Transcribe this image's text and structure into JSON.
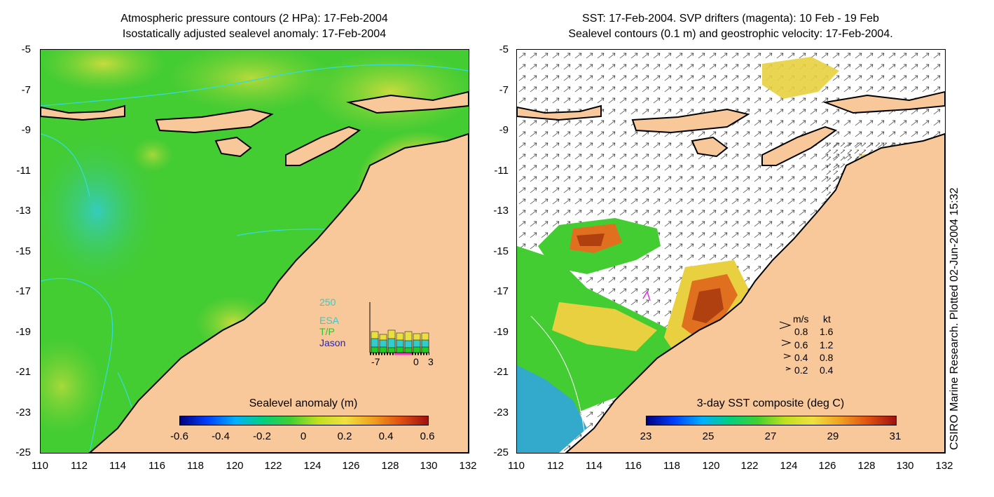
{
  "left": {
    "title_line1": "Atmospheric pressure contours (2 HPa): 17-Feb-2004",
    "title_line2": "Isostatically adjusted sealevel anomaly: 17-Feb-2004",
    "colorbar_title": "Sealevel anomaly (m)",
    "colorbar_ticks": [
      "-0.6",
      "-0.4",
      "-0.2",
      "0",
      "0.2",
      "0.4",
      "0.6"
    ],
    "inset": {
      "ymax_label": "250",
      "series": [
        {
          "name": "ESA",
          "color": "#33cccc"
        },
        {
          "name": "T/P",
          "color": "#22cc22"
        },
        {
          "name": "Jason",
          "color": "#2222cc"
        }
      ],
      "x_labels": [
        "-7",
        "0",
        "3"
      ]
    }
  },
  "right": {
    "title_line1": "SST: 17-Feb-2004. SVP drifters (magenta): 10 Feb - 19 Feb",
    "title_line2": "Sealevel contours (0.1 m) and geostrophic velocity: 17-Feb-2004.",
    "colorbar_title": "3-day SST composite (deg C)",
    "colorbar_ticks": [
      "23",
      "25",
      "27",
      "29",
      "31"
    ],
    "velocity_legend": {
      "header_ms": "m/s",
      "header_kt": "kt",
      "rows": [
        {
          "ms": "0.8",
          "kt": "1.6"
        },
        {
          "ms": "0.6",
          "kt": "1.2"
        },
        {
          "ms": "0.4",
          "kt": "0.8"
        },
        {
          "ms": "0.2",
          "kt": "0.4"
        }
      ]
    }
  },
  "y_ticks": [
    "-5",
    "-7",
    "-9",
    "-11",
    "-13",
    "-15",
    "-17",
    "-19",
    "-21",
    "-23",
    "-25"
  ],
  "x_ticks": [
    "110",
    "112",
    "114",
    "116",
    "118",
    "120",
    "122",
    "124",
    "126",
    "128",
    "130",
    "132"
  ],
  "credit": "CSIRO Marine Research. Plotted 02-Jun-2004 15:32",
  "colors": {
    "land": "#f8c89a",
    "ocean_green": "#44cc33",
    "contour_cyan": "#33dddd",
    "drifter_magenta": "#dd33dd"
  }
}
